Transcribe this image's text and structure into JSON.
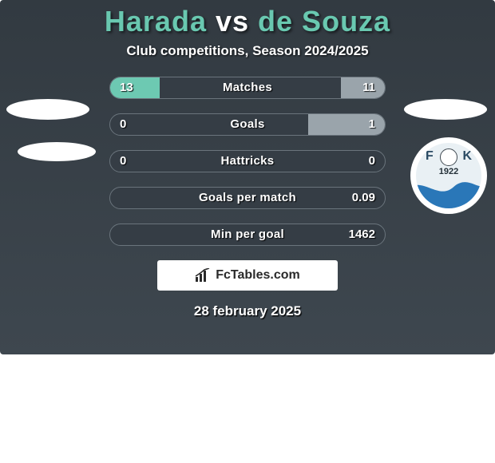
{
  "title": {
    "player_a": "Harada",
    "vs": "vs",
    "player_b": "de Souza",
    "color_a": "#69c8b0",
    "color_vs": "#ffffff",
    "color_b": "#69c8b0"
  },
  "subtitle": "Club competitions, Season 2024/2025",
  "date": "28 february 2025",
  "brand": {
    "text": "FcTables.com"
  },
  "colors": {
    "card_bg_top": "#323a41",
    "card_bg_bottom": "#3e474f",
    "row_bg": "#353d45",
    "row_border": "#6a747c",
    "fill_a": "#6dc9b2",
    "fill_b": "#9aa4ab"
  },
  "crest": {
    "year": "1922",
    "year_color": "#243038",
    "letter_left": "F",
    "letter_right": "K",
    "letter_color": "#2a4a63",
    "wave_color": "#2a77b8",
    "inner_bg": "#e9f0f4"
  },
  "rows": [
    {
      "label": "Matches",
      "a": "13",
      "b": "11",
      "a_pct": 18,
      "b_pct": 16
    },
    {
      "label": "Goals",
      "a": "0",
      "b": "1",
      "a_pct": 0,
      "b_pct": 28
    },
    {
      "label": "Hattricks",
      "a": "0",
      "b": "0",
      "a_pct": 0,
      "b_pct": 0
    },
    {
      "label": "Goals per match",
      "a": "",
      "b": "0.09",
      "a_pct": 0,
      "b_pct": 0
    },
    {
      "label": "Min per goal",
      "a": "",
      "b": "1462",
      "a_pct": 0,
      "b_pct": 0
    }
  ]
}
